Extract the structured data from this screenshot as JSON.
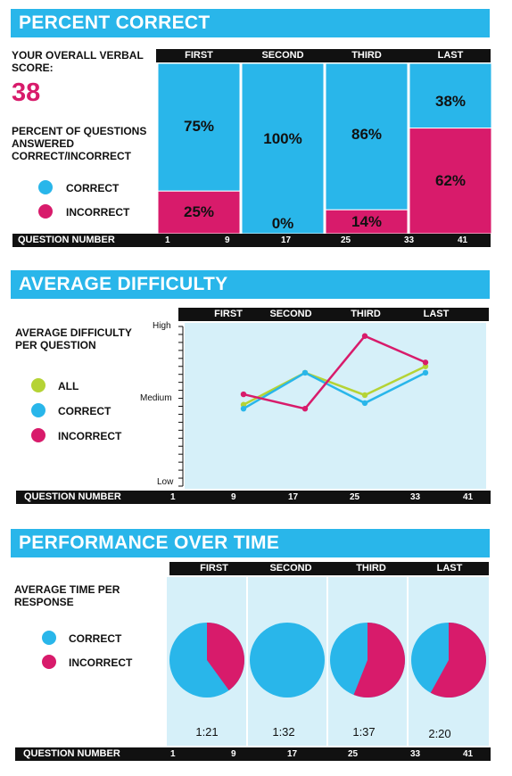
{
  "colors": {
    "correct": "#29b6ea",
    "incorrect": "#d81b6b",
    "all": "#b5d335",
    "panel": "#d6f0f9"
  },
  "section1": {
    "title": "PERCENT CORRECT",
    "score_label": "YOUR OVERALL VERBAL SCORE:",
    "score_value": "38",
    "desc": "PERCENT OF QUESTIONS ANSWERED CORRECT/INCORRECT",
    "legend": [
      "CORRECT",
      "INCORRECT"
    ],
    "headers": [
      "FIRST",
      "SECOND",
      "THIRD",
      "LAST"
    ],
    "question_label": "QUESTION NUMBER",
    "question_numbers": [
      "1",
      "9",
      "17",
      "25",
      "33",
      "41"
    ],
    "correct_labels": [
      "75%",
      "100%",
      "86%",
      "38%"
    ],
    "incorrect_labels": [
      "25%",
      "0%",
      "14%",
      "62%"
    ]
  },
  "section2": {
    "title": "AVERAGE DIFFICULTY",
    "desc": "AVERAGE DIFFICULTY PER QUESTION",
    "legend": [
      "ALL",
      "CORRECT",
      "INCORRECT"
    ],
    "headers": [
      "FIRST",
      "SECOND",
      "THIRD",
      "LAST"
    ],
    "y_labels": [
      "High",
      "Medium",
      "Low"
    ],
    "question_label": "QUESTION NUMBER",
    "question_numbers": [
      "1",
      "9",
      "17",
      "25",
      "33",
      "41"
    ]
  },
  "section3": {
    "title": "PERFORMANCE OVER TIME",
    "desc": "AVERAGE TIME PER RESPONSE",
    "legend": [
      "CORRECT",
      "INCORRECT"
    ],
    "headers": [
      "FIRST",
      "SECOND",
      "THIRD",
      "LAST"
    ],
    "times": [
      "1:21",
      "1:32",
      "1:37",
      "2:20"
    ],
    "question_label": "QUESTION NUMBER",
    "question_numbers": [
      "1",
      "9",
      "17",
      "25",
      "33",
      "41"
    ]
  },
  "chart_data": [
    {
      "type": "bar",
      "categories": [
        "FIRST",
        "SECOND",
        "THIRD",
        "LAST"
      ],
      "series": [
        {
          "name": "CORRECT",
          "values": [
            75,
            100,
            86,
            38
          ]
        },
        {
          "name": "INCORRECT",
          "values": [
            25,
            0,
            14,
            62
          ]
        }
      ],
      "stacked": true,
      "ylim": [
        0,
        100
      ],
      "title": "PERCENT CORRECT"
    },
    {
      "type": "line",
      "categories": [
        "FIRST",
        "SECOND",
        "THIRD",
        "LAST"
      ],
      "y_scale": "qualitative Low–Medium–High (0=Low, 1=Medium, 2=High)",
      "ylim": [
        0,
        2
      ],
      "series": [
        {
          "name": "ALL",
          "values": [
            1.02,
            1.42,
            1.14,
            1.5
          ]
        },
        {
          "name": "CORRECT",
          "values": [
            0.97,
            1.42,
            1.04,
            1.42
          ]
        },
        {
          "name": "INCORRECT",
          "values": [
            1.15,
            0.97,
            1.88,
            1.55
          ]
        }
      ],
      "title": "AVERAGE DIFFICULTY"
    },
    {
      "type": "pie",
      "title": "PERFORMANCE OVER TIME",
      "pies": [
        {
          "category": "FIRST",
          "time": "1:21",
          "correct": 60,
          "incorrect": 40
        },
        {
          "category": "SECOND",
          "time": "1:32",
          "correct": 100,
          "incorrect": 0
        },
        {
          "category": "THIRD",
          "time": "1:37",
          "correct": 44,
          "incorrect": 56
        },
        {
          "category": "LAST",
          "time": "2:20",
          "correct": 42,
          "incorrect": 58
        }
      ]
    }
  ]
}
